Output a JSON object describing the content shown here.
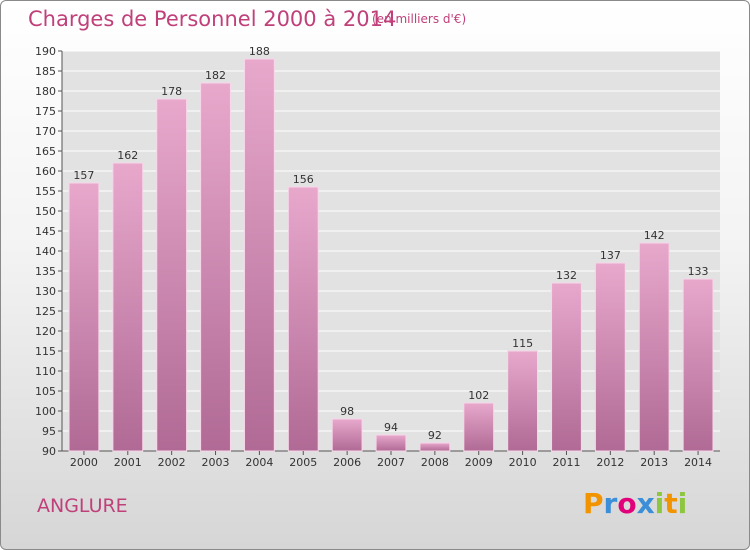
{
  "chart_data": {
    "type": "bar",
    "title": "Charges de Personnel 2000 à 2014",
    "subtitle": "(en milliers d'€)",
    "categories": [
      "2000",
      "2001",
      "2002",
      "2003",
      "2004",
      "2005",
      "2006",
      "2007",
      "2008",
      "2009",
      "2010",
      "2011",
      "2012",
      "2013",
      "2014"
    ],
    "values": [
      157,
      162,
      178,
      182,
      188,
      156,
      98,
      94,
      92,
      102,
      115,
      132,
      137,
      142,
      133
    ],
    "ylim": [
      90,
      190
    ],
    "yticks": [
      90,
      95,
      100,
      105,
      110,
      115,
      120,
      125,
      130,
      135,
      140,
      145,
      150,
      155,
      160,
      165,
      170,
      175,
      180,
      185,
      190
    ],
    "grid": true,
    "bar_color_top": "#e8a8cc",
    "bar_color_bottom": "#b06a95"
  },
  "commune": "ANGLURE",
  "logo": {
    "text": "Proxiti",
    "letters": [
      "P",
      "r",
      "o",
      "x",
      "i",
      "t",
      "i"
    ],
    "colors": [
      "#f29400",
      "#3a8fd8",
      "#e2007a",
      "#3a8fd8",
      "#8dc63f",
      "#f29400",
      "#8dc63f"
    ]
  }
}
